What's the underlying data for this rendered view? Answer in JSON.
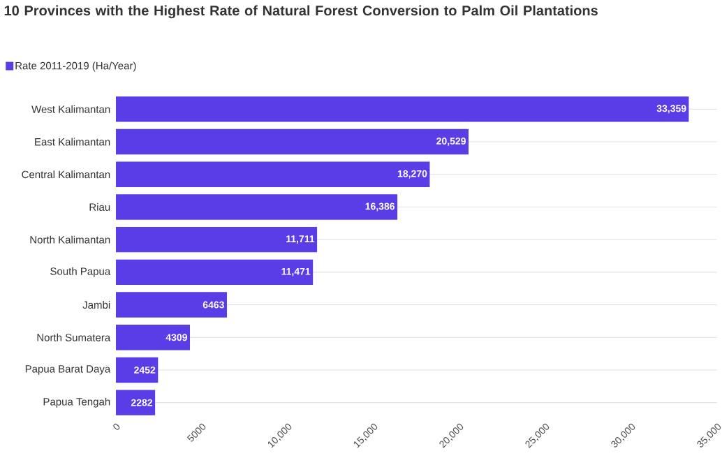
{
  "chart_data": {
    "type": "bar",
    "orientation": "horizontal",
    "title": "10 Provinces with the Highest Rate of Natural Forest Conversion to Palm Oil Plantations",
    "categories": [
      "West Kalimantan",
      "East Kalimantan",
      "Central Kalimantan",
      "Riau",
      "North Kalimantan",
      "South Papua",
      "Jambi",
      "North Sumatera",
      "Papua Barat Daya",
      "Papua Tengah"
    ],
    "series": [
      {
        "name": "Rate 2011-2019 (Ha/Year)",
        "color": "#5a3de6",
        "values": [
          33359,
          20529,
          18270,
          16386,
          11711,
          11471,
          6463,
          4309,
          2452,
          2282
        ],
        "value_labels": [
          "33,359",
          "20,529",
          "18,270",
          "16,386",
          "11,711",
          "11,471",
          "6463",
          "4309",
          "2452",
          "2282"
        ]
      }
    ],
    "xlim": [
      0,
      35000
    ],
    "xticks": [
      0,
      5000,
      {
        "value": 10000,
        "label": "10,000"
      },
      {
        "value": 15000,
        "label": "15,000"
      },
      {
        "value": 20000,
        "label": "20,000"
      },
      {
        "value": 25000,
        "label": "25,000"
      },
      {
        "value": 30000,
        "label": "30,000"
      },
      {
        "value": 35000,
        "label": "35,000"
      }
    ],
    "grid": "y",
    "legend": "top left"
  }
}
